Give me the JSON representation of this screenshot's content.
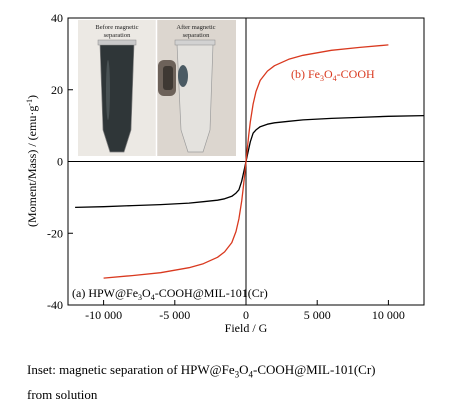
{
  "chart_data": {
    "type": "line",
    "xlabel": "Field / G",
    "ylabel": "(Moment/Mass) / (emu·g⁻¹)",
    "ylabel_parts": [
      "(Moment/Mass) / (emu·g",
      "-1",
      ")"
    ],
    "xlim": [
      -12500,
      12500
    ],
    "ylim": [
      -40,
      40
    ],
    "x_ticks": [
      -10000,
      -5000,
      0,
      5000,
      10000
    ],
    "x_tick_labels": [
      "-10 000",
      "-5 000",
      "0",
      "5 000",
      "10 000"
    ],
    "y_ticks": [
      -40,
      -20,
      0,
      20,
      40
    ],
    "y_tick_labels": [
      "-40",
      "-20",
      "0",
      "20",
      "40"
    ],
    "grid": false,
    "series": [
      {
        "name": "(a) HPW@Fe3O4-COOH@MIL-101(Cr)",
        "label_parts": [
          "(a) HPW@Fe",
          "3",
          "O",
          "4",
          "-COOH@MIL-101(Cr)"
        ],
        "label_position": "bottom-left",
        "color": "#000000",
        "x": [
          -12000,
          -10000,
          -8000,
          -6000,
          -4000,
          -3000,
          -2000,
          -1500,
          -1000,
          -700,
          -500,
          -300,
          -200,
          -100,
          0,
          100,
          200,
          300,
          500,
          700,
          1000,
          1500,
          2000,
          3000,
          4000,
          6000,
          8000,
          10000,
          12500
        ],
        "y": [
          -12.8,
          -12.6,
          -12.3,
          -12.0,
          -11.6,
          -11.2,
          -10.8,
          -10.4,
          -9.7,
          -8.8,
          -7.9,
          -5.5,
          -3.6,
          -1.8,
          0,
          1.8,
          3.6,
          5.5,
          7.9,
          8.8,
          9.7,
          10.4,
          10.8,
          11.2,
          11.6,
          12.0,
          12.3,
          12.6,
          12.8
        ]
      },
      {
        "name": "(b) Fe3O4-COOH",
        "label_parts": [
          "(b) Fe",
          "3",
          "O",
          "4",
          "-COOH"
        ],
        "label_position": "upper-right",
        "color": "#d9391f",
        "x": [
          -10000,
          -8000,
          -6000,
          -4000,
          -3000,
          -2000,
          -1500,
          -1000,
          -700,
          -500,
          -300,
          -200,
          -100,
          0,
          100,
          200,
          300,
          500,
          700,
          1000,
          1500,
          2000,
          3000,
          4000,
          6000,
          8000,
          10000
        ],
        "y": [
          -32.5,
          -31.8,
          -31.0,
          -29.6,
          -28.5,
          -26.7,
          -25.2,
          -22.6,
          -19.5,
          -16.0,
          -11.0,
          -7.5,
          -3.8,
          0,
          3.8,
          7.5,
          11.0,
          16.0,
          19.5,
          22.6,
          25.2,
          26.7,
          28.5,
          29.6,
          31.0,
          31.8,
          32.5
        ]
      }
    ],
    "inset": {
      "left_label": [
        "Before magnetic",
        "separation"
      ],
      "right_label": [
        "After magnetic",
        "separation"
      ]
    }
  },
  "caption": {
    "line1_parts": [
      "Inset: magnetic separation of HPW@Fe",
      "3",
      "O",
      "4",
      "-COOH@MIL-101(Cr)"
    ],
    "line2": "from solution"
  }
}
